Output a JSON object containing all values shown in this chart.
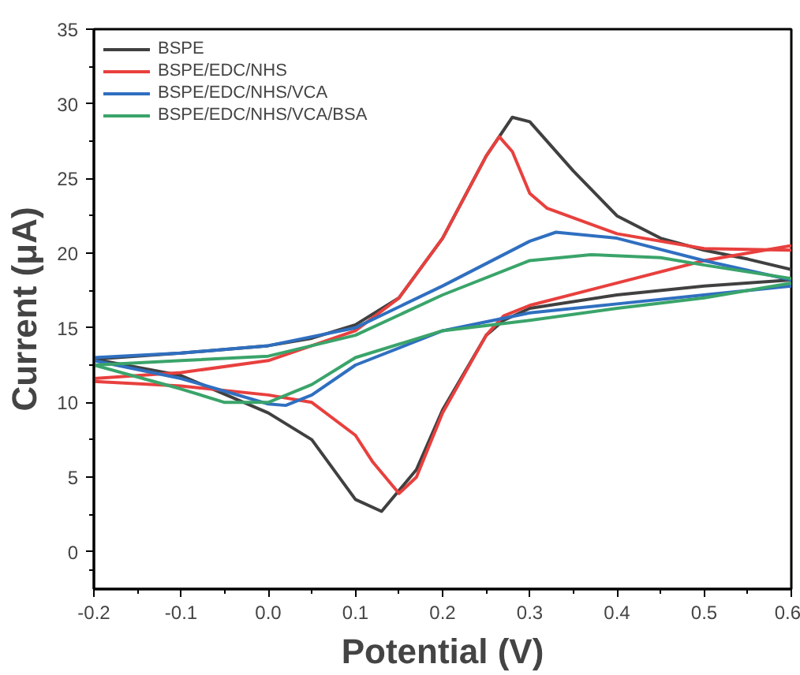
{
  "chart_data": {
    "type": "line",
    "xlabel": "Potential (V)",
    "ylabel": "Current (μA)",
    "xlim": [
      -0.2,
      0.6
    ],
    "ylim": [
      -2.5,
      35
    ],
    "xticks": [
      -0.2,
      -0.1,
      {
        "value": 0,
        "label": "0.0"
      },
      0.1,
      0.2,
      0.3,
      0.4,
      0.5,
      0.6
    ],
    "yticks": [
      0,
      5,
      10,
      15,
      20,
      25,
      30,
      35
    ],
    "grid": false,
    "legend": "top left",
    "marker": "none",
    "line_style": "solid",
    "series": [
      {
        "name": "BSPE",
        "color": "#404040",
        "x": [
          -0.2,
          -0.1,
          0,
          0.05,
          0.1,
          0.15,
          0.2,
          0.25,
          0.28,
          0.3,
          0.35,
          0.4,
          0.45,
          0.5,
          0.55,
          0.6
        ],
        "values": [
          12.9,
          13.3,
          13.8,
          14.3,
          15.2,
          17,
          21,
          26.5,
          29.1,
          28.8,
          25.5,
          22.5,
          21,
          20.2,
          19.6,
          18.9
        ]
      },
      {
        "color": "#404040",
        "x": [
          0.6,
          0.5,
          0.4,
          0.3,
          0.27,
          0.25,
          0.2,
          0.17,
          0.13,
          0.1,
          0.05,
          0,
          -0.1,
          -0.2
        ],
        "values": [
          18.2,
          17.8,
          17.2,
          16.3,
          15.5,
          14.5,
          9.5,
          5.5,
          2.7,
          3.5,
          7.5,
          9.3,
          11.8,
          12.9
        ]
      },
      {
        "name": "BSPE/EDC/NHS",
        "color": "#e8403e",
        "x": [
          -0.2,
          -0.1,
          0,
          0.1,
          0.15,
          0.2,
          0.25,
          0.265,
          0.28,
          0.3,
          0.32,
          0.4,
          0.5,
          0.6
        ],
        "values": [
          11.6,
          12.0,
          12.8,
          14.8,
          17,
          21,
          26.5,
          27.8,
          26.8,
          24,
          23,
          21.3,
          20.3,
          20.2
        ]
      },
      {
        "color": "#e8403e",
        "x": [
          0.6,
          0.5,
          0.4,
          0.3,
          0.27,
          0.25,
          0.2,
          0.17,
          0.15,
          0.12,
          0.1,
          0.05,
          0,
          -0.1,
          -0.2
        ],
        "values": [
          20.5,
          19.5,
          18,
          16.5,
          15.8,
          14.5,
          9.3,
          5,
          3.9,
          6,
          7.8,
          10,
          10.5,
          11.1,
          11.4
        ]
      },
      {
        "name": "BSPE/EDC/NHS/VCA",
        "color": "#2f6fc0",
        "x": [
          -0.2,
          -0.1,
          0,
          0.1,
          0.2,
          0.3,
          0.33,
          0.4,
          0.5,
          0.6
        ],
        "values": [
          13,
          13.3,
          13.8,
          15,
          17.8,
          20.8,
          21.4,
          21,
          19.5,
          18.2
        ]
      },
      {
        "color": "#2f6fc0",
        "x": [
          0.6,
          0.5,
          0.4,
          0.3,
          0.2,
          0.1,
          0.05,
          0.02,
          0,
          -0.1,
          -0.2
        ],
        "values": [
          17.8,
          17.2,
          16.6,
          16,
          14.8,
          12.5,
          10.5,
          9.8,
          9.9,
          11.6,
          12.8
        ]
      },
      {
        "name": "BSPE/EDC/NHS/VCA/BSA",
        "color": "#3aa46a",
        "x": [
          -0.2,
          -0.1,
          0,
          0.1,
          0.2,
          0.3,
          0.37,
          0.45,
          0.5,
          0.6
        ],
        "values": [
          12.5,
          12.8,
          13.1,
          14.5,
          17.2,
          19.5,
          19.9,
          19.7,
          19.2,
          18.3
        ]
      },
      {
        "color": "#3aa46a",
        "x": [
          0.6,
          0.5,
          0.4,
          0.3,
          0.2,
          0.1,
          0.05,
          0,
          -0.05,
          -0.1,
          -0.2
        ],
        "values": [
          18,
          17,
          16.3,
          15.5,
          14.8,
          13,
          11.2,
          10,
          10,
          10.9,
          12.5
        ]
      }
    ]
  }
}
